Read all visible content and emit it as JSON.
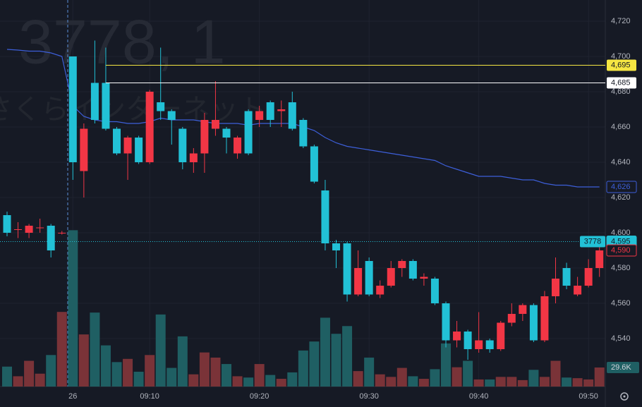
{
  "chart_data": {
    "type": "candlestick",
    "watermark": "3778, 1",
    "watermark_name": "さくらインターネット",
    "categories": [
      null,
      null,
      null,
      null,
      null,
      null,
      "26",
      null,
      null,
      null,
      null,
      null,
      null,
      "09:10",
      null,
      null,
      null,
      null,
      null,
      null,
      null,
      null,
      null,
      "09:20",
      null,
      null,
      null,
      null,
      null,
      null,
      null,
      null,
      null,
      "09:30",
      null,
      null,
      null,
      null,
      null,
      null,
      null,
      null,
      null,
      "09:40",
      null,
      null,
      null,
      null,
      null,
      null,
      null,
      null,
      null,
      "09:50",
      null
    ],
    "open": [
      4610,
      4602,
      4600,
      4603,
      4604,
      4600,
      4700,
      4635,
      4685,
      4685,
      4659,
      4645,
      4654,
      4640,
      4674,
      4669,
      4659,
      4640,
      4645,
      4659,
      4659,
      4645,
      4669,
      4664,
      4674,
      4669,
      4674,
      4664,
      4649,
      4624,
      4594,
      4594,
      4565,
      4584,
      4565,
      4570,
      4580,
      4584,
      4574,
      4574,
      4560,
      4539,
      4544,
      4534,
      4539,
      4534,
      4549,
      4554,
      4559,
      4539,
      4564,
      4580,
      4565,
      4570,
      4580
    ],
    "high": [
      4612,
      4606,
      4605,
      4608,
      4605,
      4601,
      4700,
      4662,
      4709,
      4705,
      4660,
      4655,
      4655,
      4681,
      4705,
      4670,
      4660,
      4648,
      4668,
      4686,
      4660,
      4655,
      4670,
      4672,
      4675,
      4675,
      4680,
      4665,
      4650,
      4630,
      4596,
      4595,
      4590,
      4586,
      4573,
      4584,
      4585,
      4585,
      4577,
      4575,
      4561,
      4550,
      4545,
      4555,
      4540,
      4550,
      4560,
      4560,
      4560,
      4567,
      4586,
      4583,
      4575,
      4585,
      4595
    ],
    "low": [
      4598,
      4597,
      4597,
      4600,
      4586,
      4599,
      4630,
      4620,
      4662,
      4658,
      4644,
      4630,
      4639,
      4639,
      4664,
      4650,
      4636,
      4634,
      4634,
      4655,
      4645,
      4642,
      4644,
      4660,
      4660,
      4660,
      4658,
      4648,
      4628,
      4590,
      4580,
      4561,
      4564,
      4564,
      4563,
      4569,
      4575,
      4573,
      4570,
      4559,
      4535,
      4535,
      4528,
      4532,
      4532,
      4533,
      4547,
      4550,
      4538,
      4538,
      4560,
      4568,
      4564,
      4569,
      4575
    ],
    "close": [
      4600,
      4602,
      4604,
      4603,
      4590,
      4600,
      4640,
      4659,
      4664,
      4659,
      4645,
      4654,
      4640,
      4680,
      4669,
      4664,
      4640,
      4645,
      4664,
      4664,
      4654,
      4654,
      4645,
      4669,
      4664,
      4670,
      4659,
      4649,
      4629,
      4594,
      4590,
      4565,
      4580,
      4565,
      4570,
      4580,
      4584,
      4574,
      4575,
      4560,
      4539,
      4544,
      4534,
      4539,
      4534,
      4549,
      4554,
      4559,
      4539,
      4564,
      4574,
      4570,
      4570,
      4580,
      4590
    ],
    "volume": [
      31,
      16,
      40,
      20,
      49,
      116,
      243,
      81,
      115,
      64,
      38,
      43,
      23,
      49,
      112,
      29,
      78,
      19,
      53,
      45,
      35,
      16,
      14,
      35,
      18,
      12,
      22,
      56,
      70,
      107,
      82,
      94,
      24,
      45,
      19,
      15,
      29,
      16,
      12,
      27,
      67,
      30,
      40,
      11,
      11,
      15,
      15,
      10,
      26,
      15,
      40,
      14,
      13,
      11,
      29.6
    ],
    "ma": [
      4704,
      4703.6,
      4703,
      4703,
      4702,
      4700,
      4672,
      4666,
      4664,
      4663,
      4663,
      4662,
      4662,
      4663,
      4665,
      4664,
      4664,
      4664,
      4663,
      4662,
      4662,
      4662,
      4661,
      4662,
      4662,
      4662,
      4662,
      4660,
      4658,
      4654,
      4651,
      4649,
      4648,
      4647,
      4646,
      4645,
      4644,
      4643,
      4642,
      4641,
      4638,
      4636,
      4634,
      4632,
      4632,
      4632,
      4631,
      4630,
      4630,
      4628,
      4627,
      4627,
      4626,
      4626,
      4626
    ],
    "up_color": "#f23645",
    "down_color": "#22c1d6",
    "up_volume_color": "#7a3338",
    "down_volume_color": "#1f5f63",
    "ma_color": "#3d5fd9",
    "ylim": [
      4512.8,
      4732
    ],
    "yticks": [
      {
        "value": 4540,
        "label": "4,540"
      },
      {
        "value": 4560,
        "label": "4,560"
      },
      {
        "value": 4580,
        "label": "4,580"
      },
      {
        "value": 4600,
        "label": "4,600"
      },
      {
        "value": 4620,
        "label": "4,620"
      },
      {
        "value": 4640,
        "label": "4,640"
      },
      {
        "value": 4660,
        "label": "4,660"
      },
      {
        "value": 4680,
        "label": "4,680"
      },
      {
        "value": 4700,
        "label": "4,700"
      },
      {
        "value": 4720,
        "label": "4,720"
      }
    ],
    "y2lim": [
      0,
      250
    ],
    "grid": true,
    "hlines": [
      {
        "value": 4695,
        "label": "4,695",
        "color": "#f5e642"
      },
      {
        "value": 4685,
        "label": "4,685",
        "color": "#ffffff"
      }
    ],
    "tags": [
      {
        "value": 4626,
        "label": "4,626",
        "color": "#3d5fd9"
      },
      {
        "value": 4595,
        "label": "4,595",
        "color": "#22c1d6",
        "symbol": "3778"
      },
      {
        "value": 4590,
        "label": "4,590",
        "color": "#f23645"
      }
    ],
    "last_volume": {
      "value": 29.6,
      "label": "29.6K"
    }
  }
}
